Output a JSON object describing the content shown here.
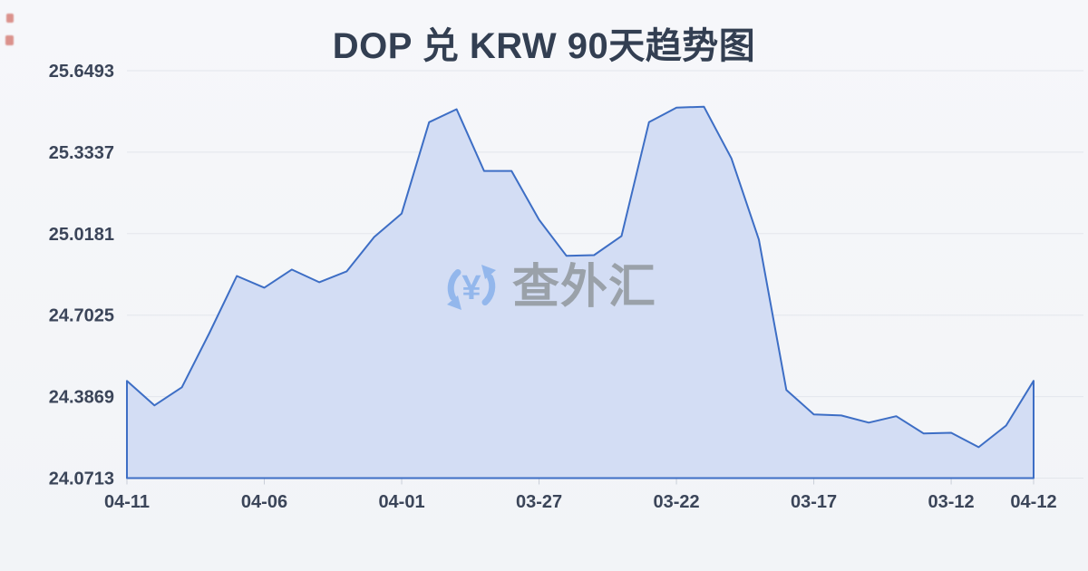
{
  "page": {
    "title": "DOP 兑 KRW 90天趋势图"
  },
  "watermark": {
    "brand_text": "查外汇",
    "currency_symbol": "¥",
    "icon": "circular-exchange-arrows-icon",
    "icon_color": "#93b7ec",
    "text_color": "#9aa1a9"
  },
  "colors": {
    "background": "#f3f5f8",
    "title_text": "#333f52",
    "axis_label_text": "#3b4559",
    "gridline": "#e3e6ec",
    "tick_mark": "#c9ced8",
    "line": "#3d6ec5",
    "area_fill": "#d3ddf4",
    "left_edge_artifact": "#c54032"
  },
  "chart_data": {
    "type": "area",
    "title": "DOP 兑 KRW 90天趋势图",
    "xlabel": "",
    "ylabel": "",
    "grid": true,
    "legend": "none",
    "ylim": [
      24.0713,
      25.6493
    ],
    "y_ticks": [
      "25.6493",
      "25.3337",
      "25.0181",
      "24.7025",
      "24.3869",
      "24.0713"
    ],
    "y_tick_values": [
      25.6493,
      25.3337,
      25.0181,
      24.7025,
      24.3869,
      24.0713
    ],
    "x_tick_labels": [
      "04-11",
      "04-06",
      "04-01",
      "03-27",
      "03-22",
      "03-17",
      "03-12",
      "04-12"
    ],
    "x_tick_indices": [
      0,
      5,
      10,
      15,
      20,
      25,
      30,
      33
    ],
    "series": [
      {
        "name": "DOP/KRW",
        "values": [
          24.448,
          24.353,
          24.423,
          24.633,
          24.854,
          24.809,
          24.879,
          24.83,
          24.872,
          25.005,
          25.096,
          25.45,
          25.5,
          25.261,
          25.261,
          25.072,
          24.932,
          24.935,
          25.009,
          25.45,
          25.506,
          25.51,
          25.31,
          24.995,
          24.413,
          24.318,
          24.314,
          24.286,
          24.311,
          24.244,
          24.247,
          24.191,
          24.275,
          24.448
        ]
      }
    ]
  }
}
